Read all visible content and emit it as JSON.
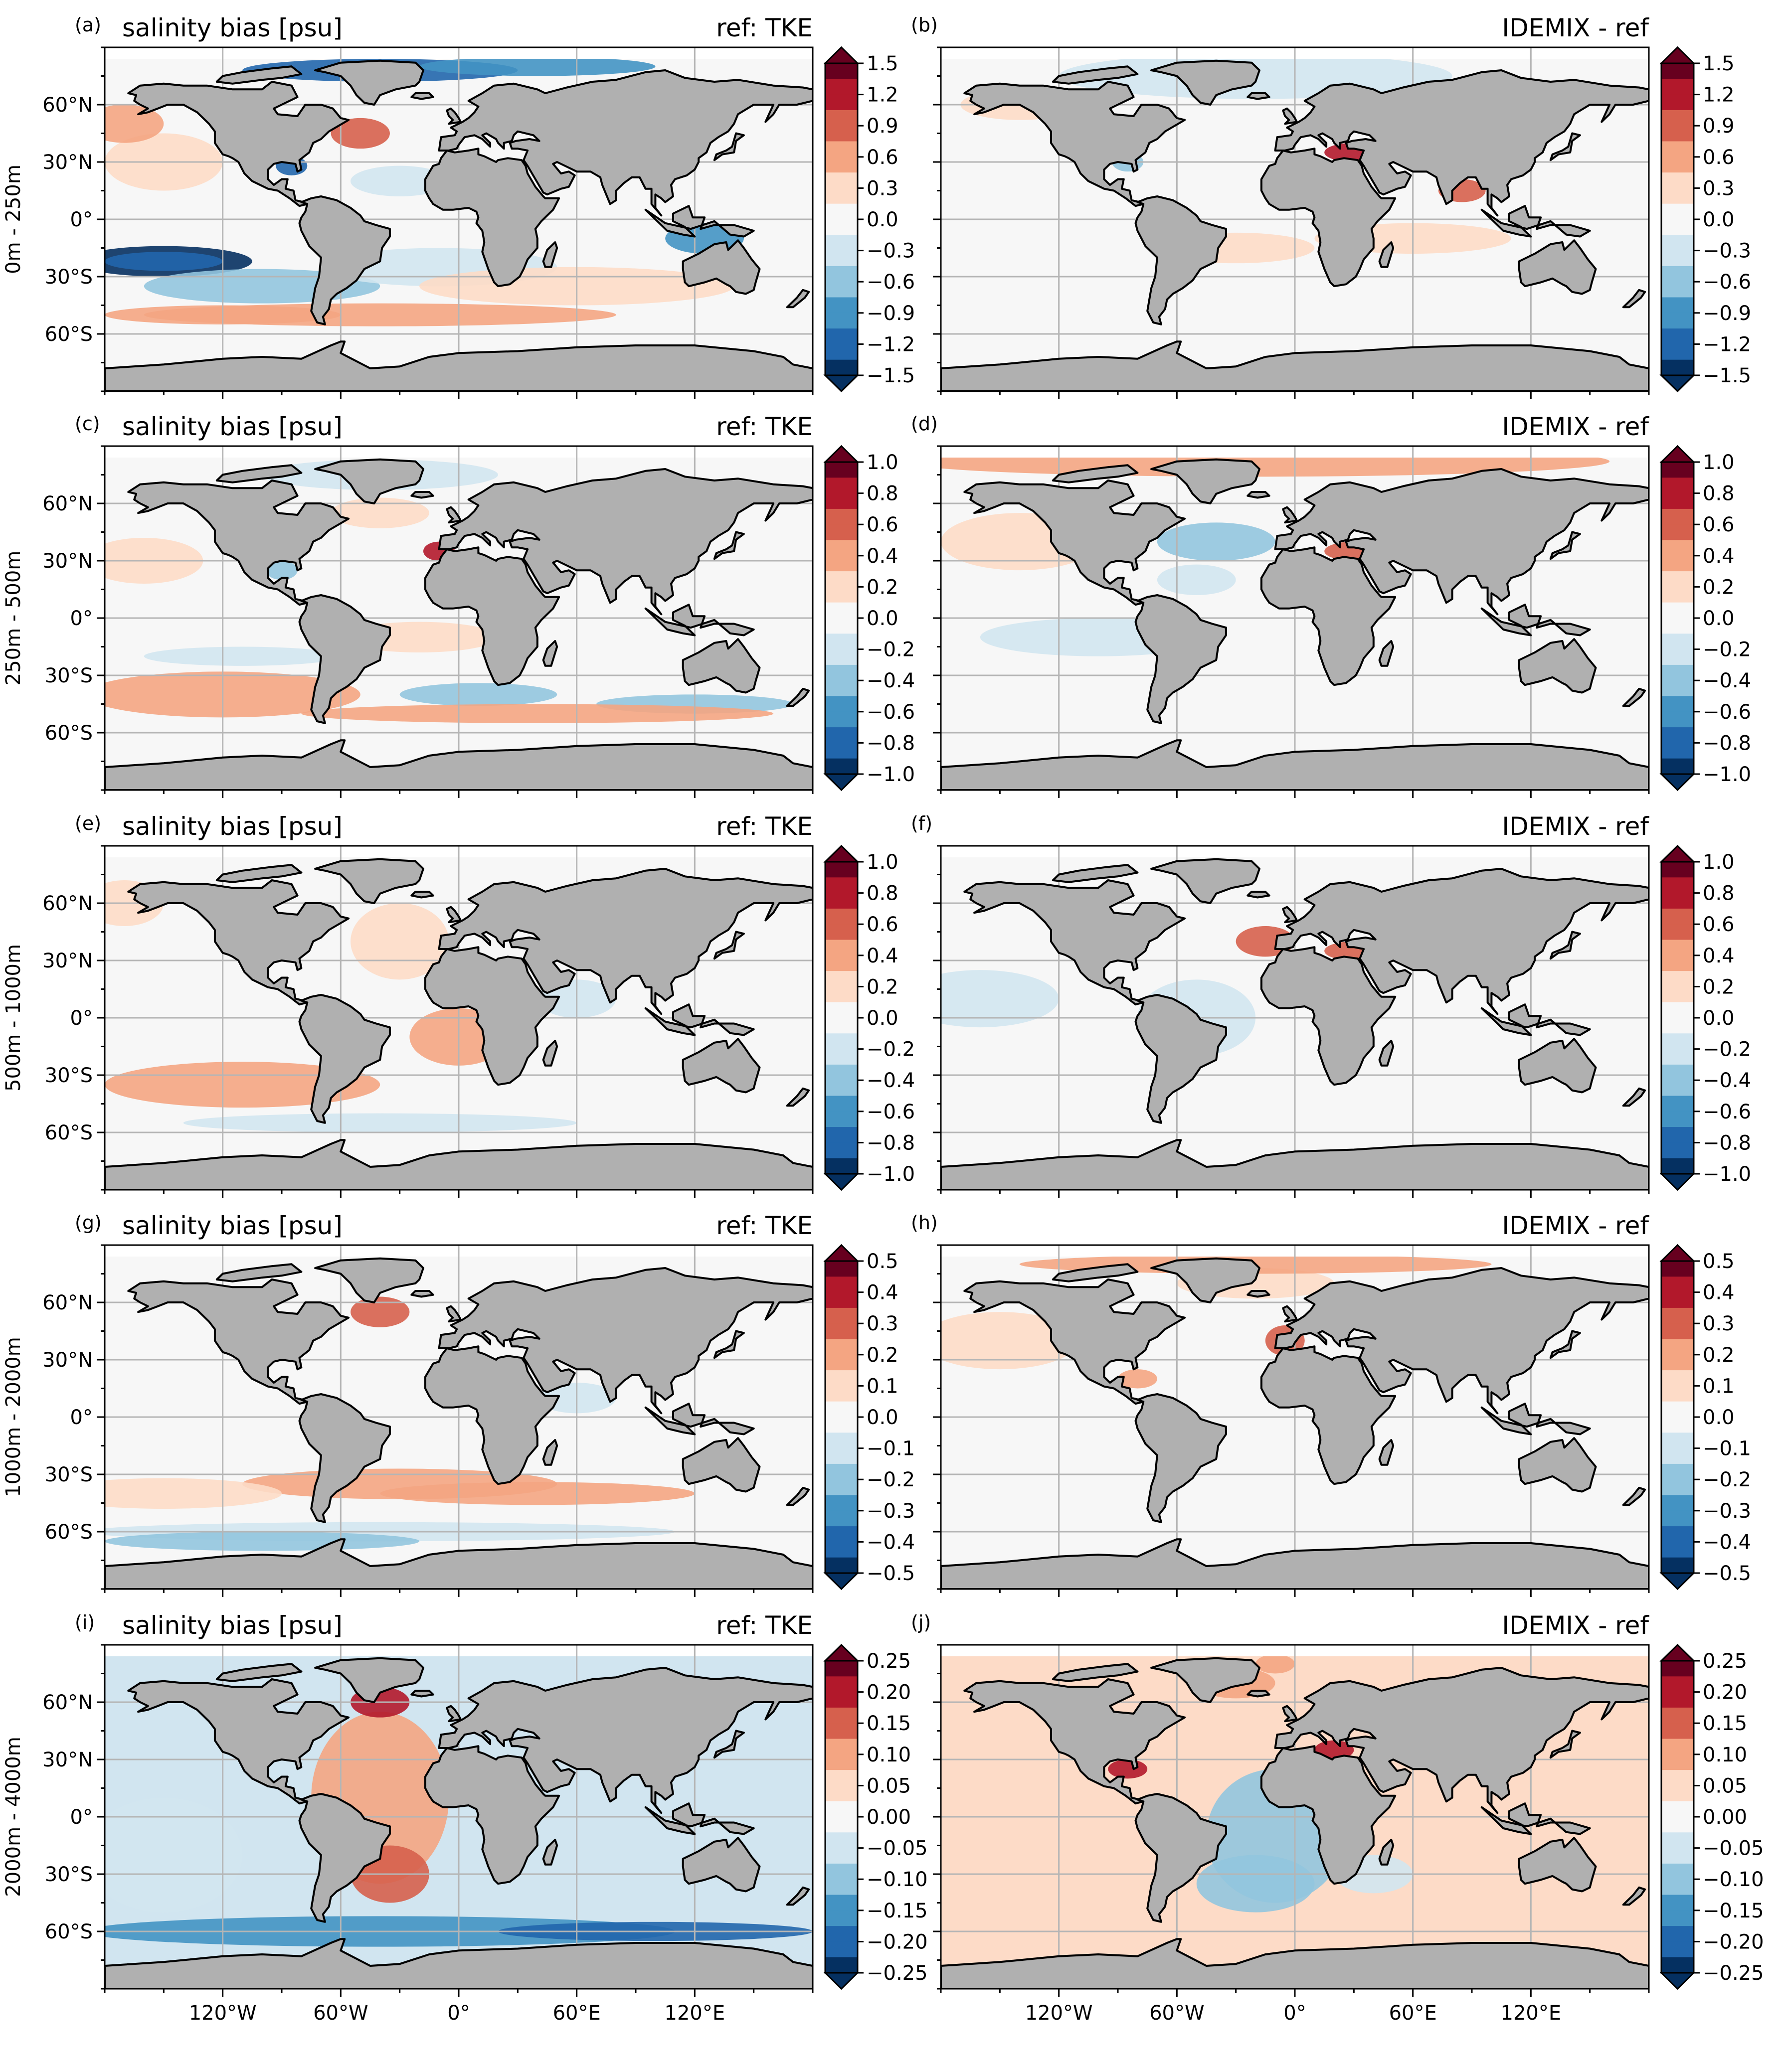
{
  "figure": {
    "x_ticks": [
      "120°W",
      "60°W",
      "0°",
      "60°E",
      "120°E"
    ],
    "y_ticks": [
      "60°N",
      "30°N",
      "0°",
      "30°S",
      "60°S"
    ]
  },
  "colors": {
    "land": "#b0b0b0",
    "coast": "#000000",
    "grid": "#b5b5b5",
    "colormap": [
      "#053061",
      "#2166ac",
      "#4393c3",
      "#92c5de",
      "#d1e5f0",
      "#f7f7f7",
      "#fddbc7",
      "#f4a582",
      "#d6604d",
      "#b2182b",
      "#67001f"
    ]
  },
  "chart_data": [
    {
      "type": "heatmap",
      "panel": "(a)",
      "title": "salinity bias [psu]",
      "right_title": "ref: TKE",
      "ylabel": "0m - 250m",
      "vmin": -1.5,
      "vmax": 1.5,
      "colorbar_ticks": [
        "1.5",
        "1.2",
        "0.9",
        "0.6",
        "0.3",
        "0.0",
        "−0.3",
        "−0.6",
        "−0.9",
        "−1.2",
        "−1.5"
      ]
    },
    {
      "type": "heatmap",
      "panel": "(b)",
      "title": "",
      "right_title": "IDEMIX - ref",
      "ylabel": "",
      "vmin": -1.5,
      "vmax": 1.5,
      "colorbar_ticks": [
        "1.5",
        "1.2",
        "0.9",
        "0.6",
        "0.3",
        "0.0",
        "−0.3",
        "−0.6",
        "−0.9",
        "−1.2",
        "−1.5"
      ]
    },
    {
      "type": "heatmap",
      "panel": "(c)",
      "title": "salinity bias [psu]",
      "right_title": "ref: TKE",
      "ylabel": "250m - 500m",
      "vmin": -1.0,
      "vmax": 1.0,
      "colorbar_ticks": [
        "1.0",
        "0.8",
        "0.6",
        "0.4",
        "0.2",
        "0.0",
        "−0.2",
        "−0.4",
        "−0.6",
        "−0.8",
        "−1.0"
      ]
    },
    {
      "type": "heatmap",
      "panel": "(d)",
      "title": "",
      "right_title": "IDEMIX - ref",
      "ylabel": "",
      "vmin": -1.0,
      "vmax": 1.0,
      "colorbar_ticks": [
        "1.0",
        "0.8",
        "0.6",
        "0.4",
        "0.2",
        "0.0",
        "−0.2",
        "−0.4",
        "−0.6",
        "−0.8",
        "−1.0"
      ]
    },
    {
      "type": "heatmap",
      "panel": "(e)",
      "title": "salinity bias [psu]",
      "right_title": "ref: TKE",
      "ylabel": "500m - 1000m",
      "vmin": -1.0,
      "vmax": 1.0,
      "colorbar_ticks": [
        "1.0",
        "0.8",
        "0.6",
        "0.4",
        "0.2",
        "0.0",
        "−0.2",
        "−0.4",
        "−0.6",
        "−0.8",
        "−1.0"
      ]
    },
    {
      "type": "heatmap",
      "panel": "(f)",
      "title": "",
      "right_title": "IDEMIX - ref",
      "ylabel": "",
      "vmin": -1.0,
      "vmax": 1.0,
      "colorbar_ticks": [
        "1.0",
        "0.8",
        "0.6",
        "0.4",
        "0.2",
        "0.0",
        "−0.2",
        "−0.4",
        "−0.6",
        "−0.8",
        "−1.0"
      ]
    },
    {
      "type": "heatmap",
      "panel": "(g)",
      "title": "salinity bias [psu]",
      "right_title": "ref: TKE",
      "ylabel": "1000m - 2000m",
      "vmin": -0.5,
      "vmax": 0.5,
      "colorbar_ticks": [
        "0.5",
        "0.4",
        "0.3",
        "0.2",
        "0.1",
        "0.0",
        "−0.1",
        "−0.2",
        "−0.3",
        "−0.4",
        "−0.5"
      ]
    },
    {
      "type": "heatmap",
      "panel": "(h)",
      "title": "",
      "right_title": "IDEMIX - ref",
      "ylabel": "",
      "vmin": -0.5,
      "vmax": 0.5,
      "colorbar_ticks": [
        "0.5",
        "0.4",
        "0.3",
        "0.2",
        "0.1",
        "0.0",
        "−0.1",
        "−0.2",
        "−0.3",
        "−0.4",
        "−0.5"
      ]
    },
    {
      "type": "heatmap",
      "panel": "(i)",
      "title": "salinity bias [psu]",
      "right_title": "ref: TKE",
      "ylabel": "2000m - 4000m",
      "vmin": -0.25,
      "vmax": 0.25,
      "colorbar_ticks": [
        "0.25",
        "0.20",
        "0.15",
        "0.10",
        "0.05",
        "0.00",
        "−0.05",
        "−0.10",
        "−0.15",
        "−0.20",
        "−0.25"
      ]
    },
    {
      "type": "heatmap",
      "panel": "(j)",
      "title": "",
      "right_title": "IDEMIX - ref",
      "ylabel": "",
      "vmin": -0.25,
      "vmax": 0.25,
      "colorbar_ticks": [
        "0.25",
        "0.20",
        "0.15",
        "0.10",
        "0.05",
        "0.00",
        "−0.05",
        "−0.10",
        "−0.15",
        "−0.20",
        "−0.25"
      ]
    }
  ]
}
